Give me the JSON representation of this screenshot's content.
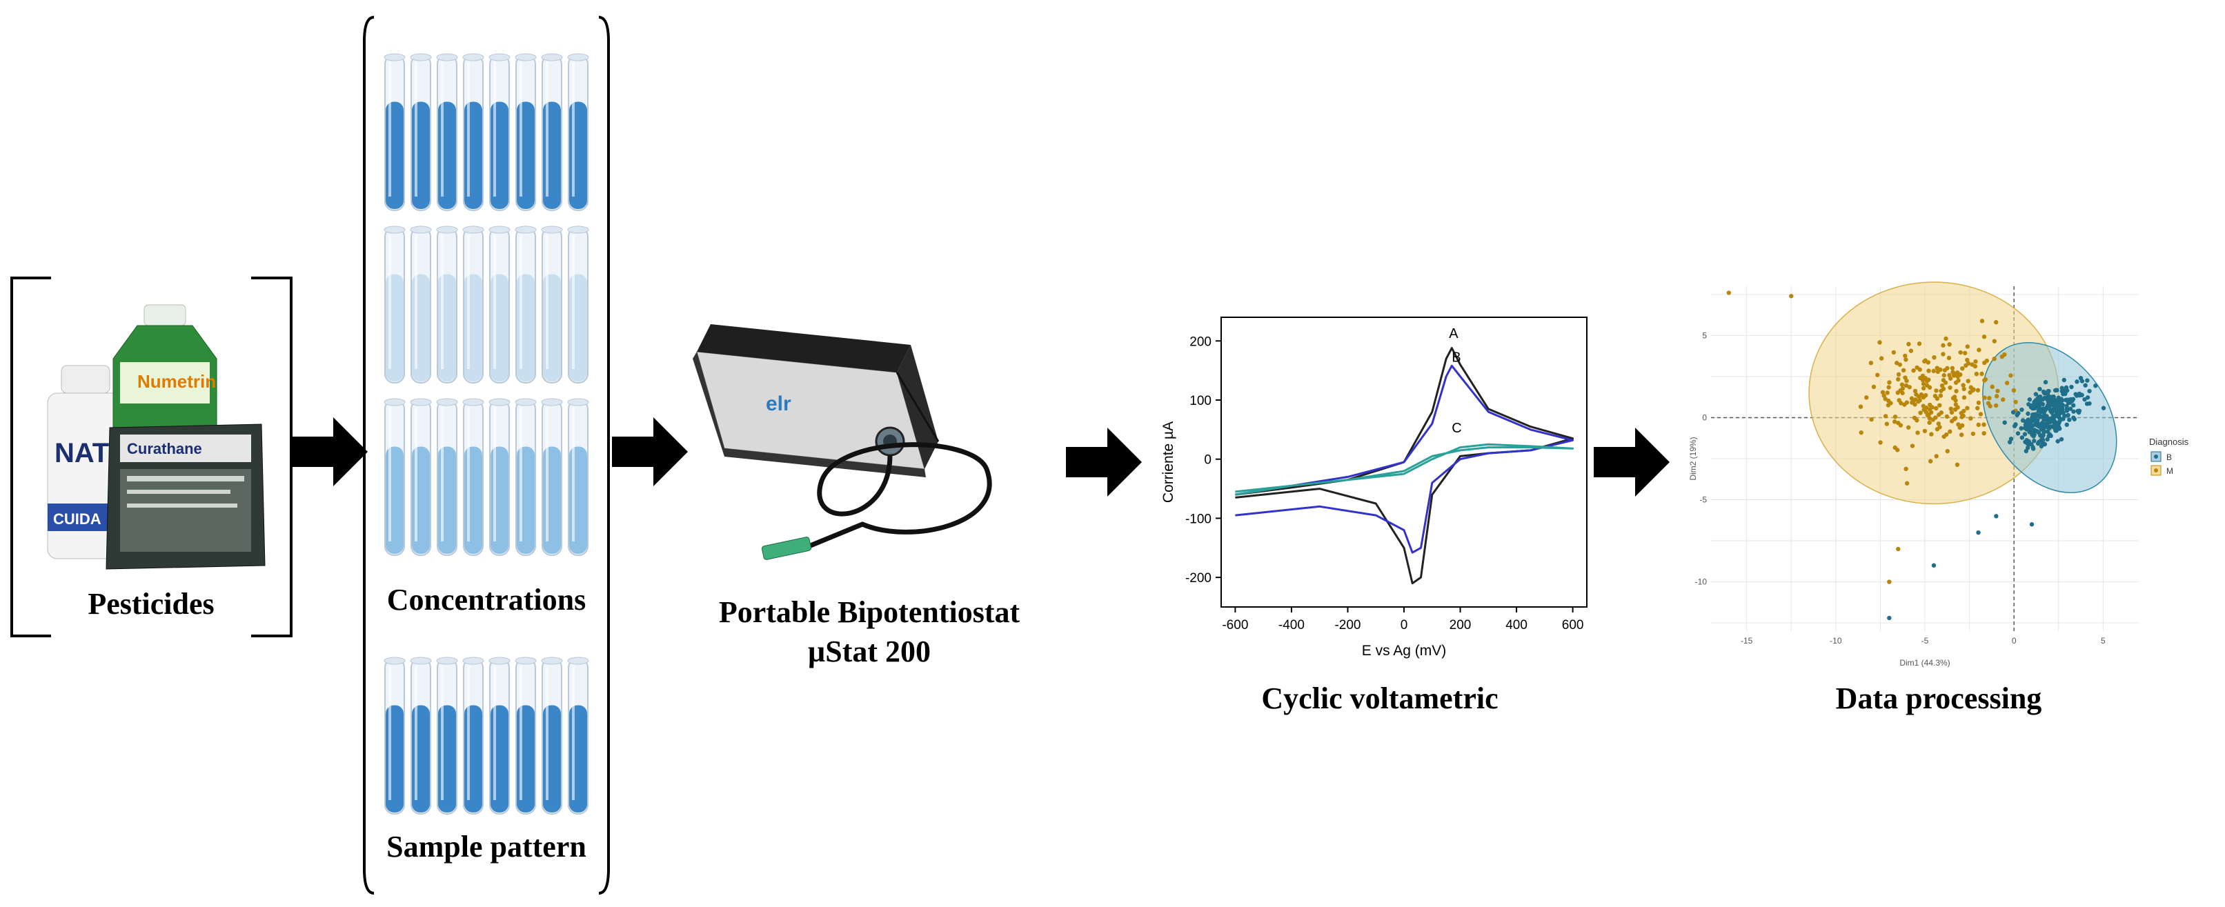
{
  "stages": {
    "pesticides": {
      "label": "Pesticides",
      "product_texts": [
        "Numetrin",
        "NATI",
        "Curathane",
        "CUIDA"
      ]
    },
    "tubes": {
      "concentrations_label": "Concentrations",
      "sample_label": "Sample pattern"
    },
    "device": {
      "label_line1": "Portable Bipotentiostat",
      "label_line2": "µStat 200",
      "brand_text": "elr"
    },
    "voltammetry": {
      "label": "Cyclic voltametric"
    },
    "processing": {
      "label": "Data processing"
    }
  },
  "chart_data": [
    {
      "type": "line",
      "xlabel": "E vs Ag  (mV)",
      "ylabel": "Corriente  µA",
      "xlim": [
        -650,
        650
      ],
      "ylim": [
        -250,
        240
      ],
      "x_ticks": [
        -600,
        -400,
        -200,
        0,
        200,
        400,
        600
      ],
      "y_ticks": [
        200,
        100,
        0,
        -100,
        -200
      ],
      "series": [
        {
          "name": "A",
          "color": "#222222",
          "x": [
            -600,
            -400,
            -200,
            0,
            100,
            150,
            170,
            200,
            300,
            450,
            600,
            450,
            300,
            200,
            100,
            60,
            30,
            0,
            -100,
            -300,
            -600
          ],
          "y": [
            -60,
            -48,
            -35,
            -5,
            80,
            170,
            188,
            160,
            85,
            55,
            35,
            15,
            10,
            5,
            -60,
            -200,
            -210,
            -150,
            -75,
            -50,
            -65
          ]
        },
        {
          "name": "B",
          "color": "#3333cc",
          "x": [
            -600,
            -400,
            -200,
            0,
            100,
            150,
            170,
            200,
            300,
            450,
            600,
            450,
            300,
            200,
            100,
            60,
            30,
            0,
            -100,
            -300,
            -600
          ],
          "y": [
            -60,
            -45,
            -30,
            -5,
            60,
            140,
            158,
            140,
            80,
            50,
            32,
            15,
            10,
            0,
            -40,
            -150,
            -158,
            -120,
            -95,
            -80,
            -95
          ]
        },
        {
          "name": "C",
          "color": "#2aa198",
          "x": [
            -600,
            -400,
            -200,
            0,
            100,
            200,
            300,
            450,
            600,
            450,
            300,
            200,
            100,
            0,
            -200,
            -400,
            -600
          ],
          "y": [
            -60,
            -45,
            -35,
            -25,
            0,
            20,
            25,
            22,
            18,
            20,
            20,
            15,
            5,
            -20,
            -35,
            -45,
            -55
          ]
        }
      ],
      "annotations": [
        "A",
        "B",
        "C"
      ]
    },
    {
      "type": "scatter",
      "xlabel": "Dim1 (44.3%)",
      "ylabel": "Dim2 (19%)",
      "xlim": [
        -17,
        7
      ],
      "ylim": [
        -13,
        8
      ],
      "x_ticks": [
        -15,
        -10,
        -5,
        0,
        5
      ],
      "y_ticks": [
        5,
        0,
        -5,
        -10
      ],
      "legend_title": "Diagnosis",
      "legend_position": "right",
      "series": [
        {
          "name": "B",
          "color": "#1f6f8b"
        },
        {
          "name": "M",
          "color": "#b8860b"
        }
      ]
    }
  ]
}
